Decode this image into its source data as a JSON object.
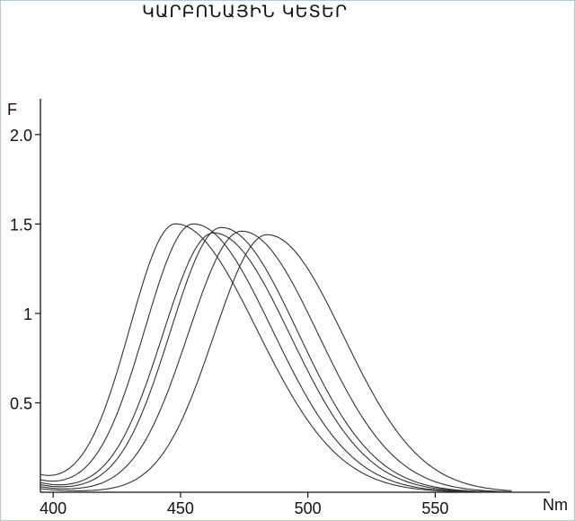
{
  "chart_data": {
    "type": "line",
    "title": "ԿԱՐԲՈՆԱՅԻՆ ԿԵՏԵՐ",
    "xlabel": "Nm",
    "ylabel": "F",
    "xlim": [
      395,
      595
    ],
    "ylim": [
      0,
      2.2
    ],
    "x_ticks": [
      400,
      450,
      500,
      550
    ],
    "x_tick_labels": [
      "400",
      "450",
      "500",
      "550"
    ],
    "y_ticks": [
      0.5,
      1,
      1.5,
      2.0
    ],
    "y_tick_labels": [
      "0.5",
      "1",
      "1.5",
      "2.0"
    ],
    "grid": false,
    "legend": "none",
    "line_color": "#333333",
    "series": [
      {
        "peak_x": 448,
        "peak_y": 1.5,
        "sigma_left": 18,
        "sigma_right": 32,
        "baseline_start": 0.08
      },
      {
        "peak_x": 455,
        "peak_y": 1.5,
        "sigma_left": 19,
        "sigma_right": 31,
        "baseline_start": 0.06
      },
      {
        "peak_x": 463,
        "peak_y": 1.45,
        "sigma_left": 20,
        "sigma_right": 30,
        "baseline_start": 0.05
      },
      {
        "peak_x": 466,
        "peak_y": 1.48,
        "sigma_left": 20,
        "sigma_right": 30,
        "baseline_start": 0.04
      },
      {
        "peak_x": 474,
        "peak_y": 1.46,
        "sigma_left": 21,
        "sigma_right": 30,
        "baseline_start": 0.03
      },
      {
        "peak_x": 484,
        "peak_y": 1.44,
        "sigma_left": 21,
        "sigma_right": 30,
        "baseline_start": 0.02
      }
    ]
  }
}
